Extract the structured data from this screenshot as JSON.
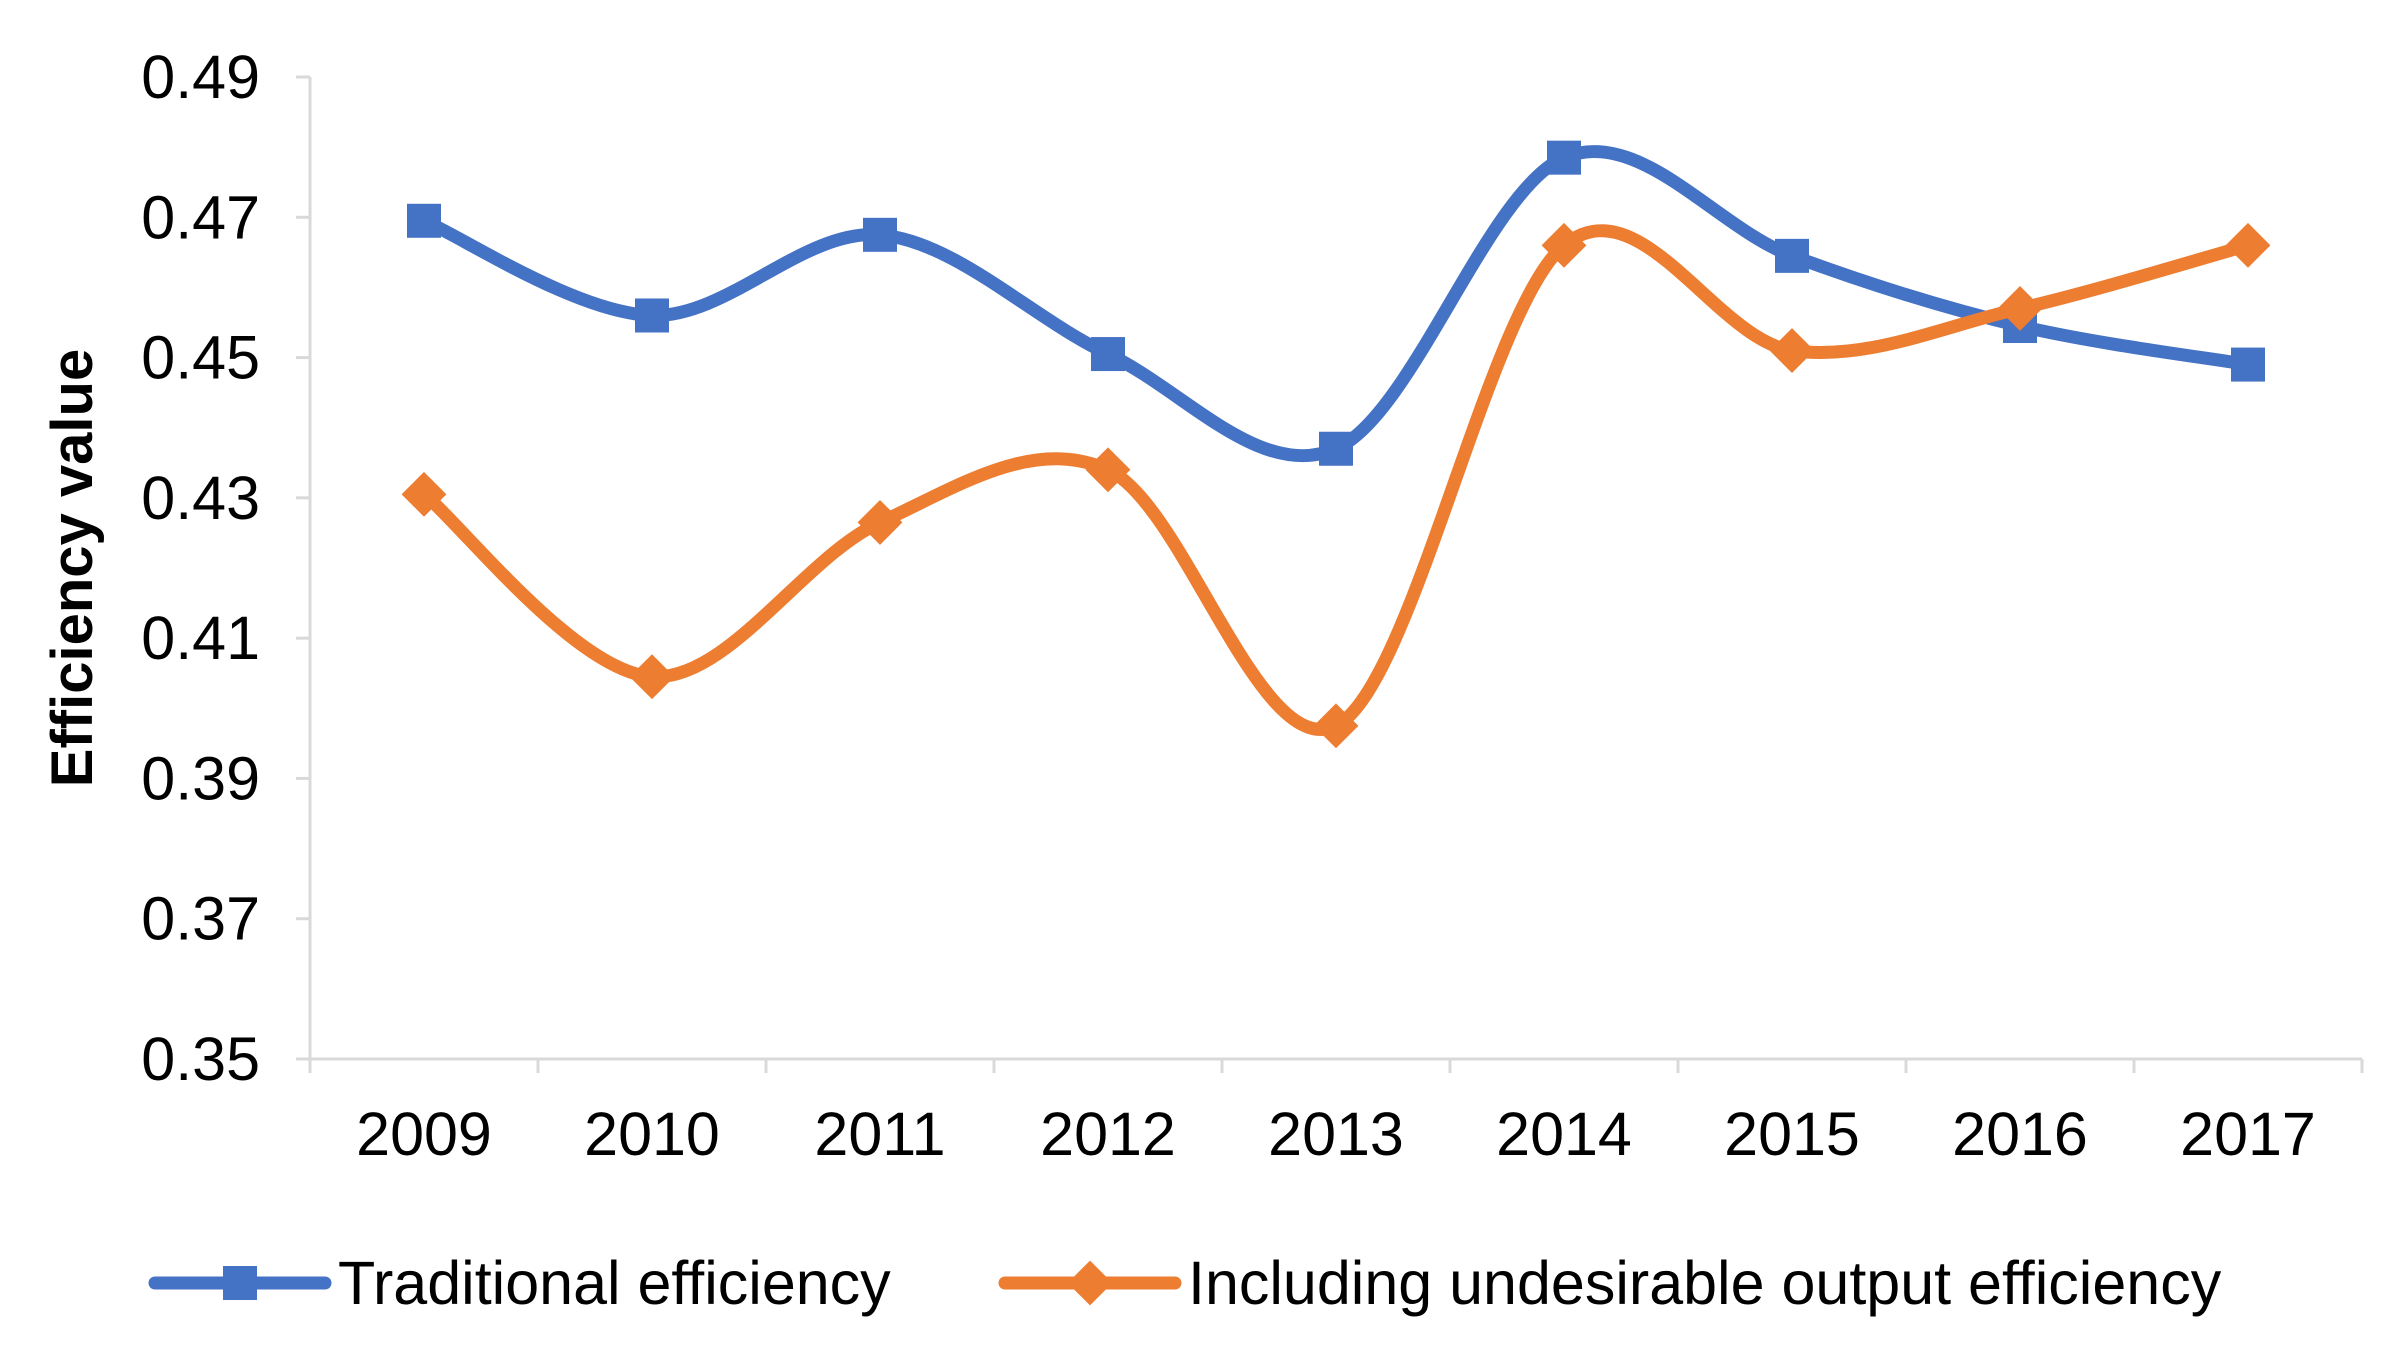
{
  "chart_data": {
    "type": "line",
    "title": "",
    "xlabel": "",
    "ylabel": "Efficiency value",
    "categories": [
      "2009",
      "2010",
      "2011",
      "2012",
      "2013",
      "2014",
      "2015",
      "2016",
      "2017"
    ],
    "ylim": [
      0.35,
      0.49
    ],
    "yticks": [
      "0.35",
      "0.37",
      "0.39",
      "0.41",
      "0.43",
      "0.45",
      "0.47",
      "0.49"
    ],
    "grid": false,
    "smooth": true,
    "legend_position": "bottom",
    "series": [
      {
        "name": "Traditional efficiency",
        "marker": "square",
        "color": "#4472C4",
        "values": [
          0.4695,
          0.456,
          0.4675,
          0.4505,
          0.437,
          0.4785,
          0.4645,
          0.4545,
          0.449
        ]
      },
      {
        "name": "Including undesirable output efficiency",
        "marker": "diamond",
        "color": "#ED7D31",
        "values": [
          0.4305,
          0.4045,
          0.4265,
          0.434,
          0.3975,
          0.466,
          0.451,
          0.457,
          0.466
        ]
      }
    ]
  }
}
